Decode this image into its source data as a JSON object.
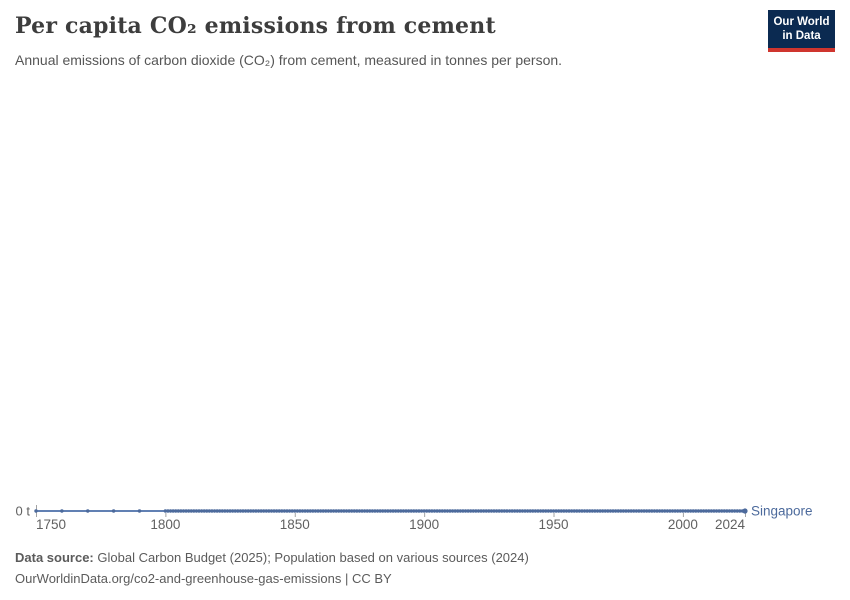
{
  "header": {
    "title": "Per capita CO₂ emissions from cement",
    "subtitle": "Annual emissions of carbon dioxide (CO₂) from cement, measured in tonnes per person.",
    "logo": {
      "line1": "Our World",
      "line2": "in Data",
      "bg_color": "#0b2a51",
      "accent_color": "#cf352e"
    }
  },
  "chart_data": {
    "type": "line",
    "title": "Per capita CO₂ emissions from cement",
    "ylabel": "tonnes per person",
    "y_zero_label": "0 t",
    "ylim": [
      0,
      0
    ],
    "xlim": [
      1750,
      2024
    ],
    "grid": false,
    "legend_position": "end-of-line",
    "x_tick_labels": [
      "1750",
      "1800",
      "1850",
      "1900",
      "1950",
      "2000",
      "2024"
    ],
    "x_tick_values": [
      1750,
      1800,
      1850,
      1900,
      1950,
      2000,
      2024
    ],
    "series": [
      {
        "name": "Singapore",
        "color": "#4c6a9c",
        "line_color": "#6180b3",
        "constant_value": 0,
        "sparse_years": [
          1750,
          1760,
          1770,
          1780,
          1790
        ],
        "annual_range": [
          1800,
          2024
        ]
      }
    ],
    "axis_text_color": "#616161",
    "tick_color": "#a3a3a3"
  },
  "footer": {
    "source_label": "Data source:",
    "source_text": "Global Carbon Budget (2025); Population based on various sources (2024)",
    "note": "OurWorldinData.org/co2-and-greenhouse-gas-emissions | CC BY"
  }
}
